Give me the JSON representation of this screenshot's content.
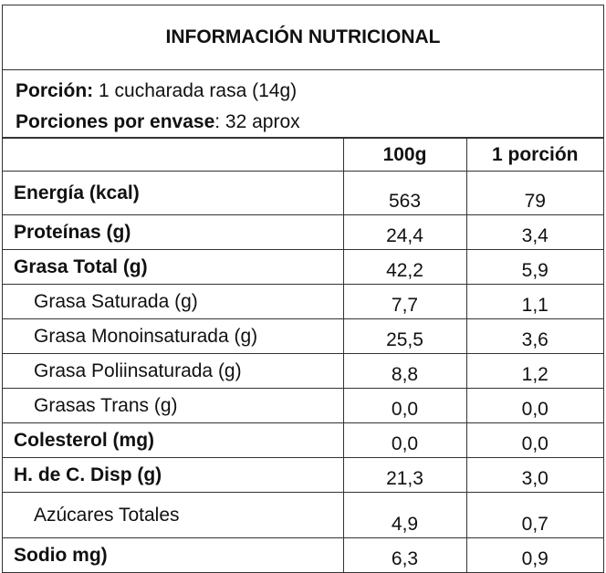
{
  "title": "INFORMACIÓN NUTRICIONAL",
  "serving": {
    "label": "Porción:",
    "value": "1 cucharada rasa (14g)"
  },
  "servings_per_container": {
    "label": "Porciones por envase",
    "value": ": 32 aprox"
  },
  "table": {
    "headers": [
      "100g",
      "1 porción"
    ],
    "rows": [
      {
        "label": "Energía (kcal)",
        "values": [
          "563",
          "79"
        ]
      },
      {
        "label": "Proteínas (g)",
        "values": [
          "24,4",
          "3,4"
        ]
      },
      {
        "label": "Grasa Total (g)",
        "values": [
          "42,2",
          "5,9"
        ]
      },
      {
        "label": "Grasa Saturada (g)",
        "values": [
          "7,7",
          "1,1"
        ],
        "sub": true
      },
      {
        "label": "Grasa Monoinsaturada (g)",
        "values": [
          "25,5",
          "3,6"
        ],
        "sub": true
      },
      {
        "label": "Grasa Poliinsaturada (g)",
        "values": [
          "8,8",
          "1,2"
        ],
        "sub": true
      },
      {
        "label": "Grasas Trans (g)",
        "values": [
          "0,0",
          "0,0"
        ],
        "sub": true
      },
      {
        "label": "Colesterol (mg)",
        "values": [
          "0,0",
          "0,0"
        ]
      },
      {
        "label": "H. de C. Disp (g)",
        "values": [
          "21,3",
          "3,0"
        ]
      },
      {
        "label": "Azúcares Totales",
        "values": [
          "4,9",
          "0,7"
        ],
        "sub": true
      },
      {
        "label": "Sodio mg)",
        "values": [
          "6,3",
          "0,9"
        ]
      }
    ]
  }
}
